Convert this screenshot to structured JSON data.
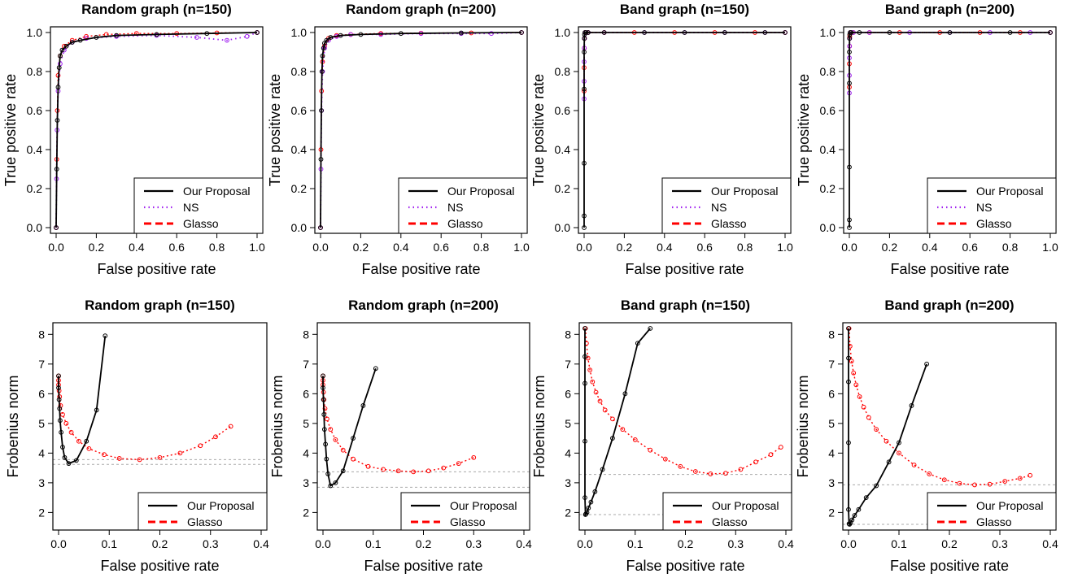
{
  "chart_data": [
    {
      "type": "line",
      "title": "Random graph (n=150)",
      "xlabel": "False positive rate",
      "ylabel": "True positive rate",
      "xlim": [
        0,
        1
      ],
      "ylim": [
        0,
        1
      ],
      "xticks": [
        "0.0",
        "0.2",
        "0.4",
        "0.6",
        "0.8",
        "1.0"
      ],
      "yticks": [
        "0.0",
        "0.2",
        "0.4",
        "0.6",
        "0.8",
        "1.0"
      ],
      "legend": "bottom-right",
      "series": [
        {
          "name": "Our Proposal",
          "color": "#000000",
          "x": [
            0,
            0.003,
            0.006,
            0.01,
            0.015,
            0.02,
            0.03,
            0.05,
            0.08,
            0.12,
            0.2,
            0.3,
            0.5,
            0.75,
            1.0
          ],
          "y": [
            0,
            0.3,
            0.55,
            0.72,
            0.82,
            0.88,
            0.91,
            0.93,
            0.95,
            0.96,
            0.975,
            0.985,
            0.99,
            0.995,
            1.0
          ]
        },
        {
          "name": "NS",
          "color": "#a020f0",
          "x": [
            0,
            0.002,
            0.005,
            0.01,
            0.02,
            0.04,
            0.08,
            0.15,
            0.3,
            0.5,
            0.7,
            0.85,
            0.95,
            1.0
          ],
          "y": [
            0,
            0.25,
            0.5,
            0.7,
            0.84,
            0.91,
            0.95,
            0.97,
            0.98,
            0.985,
            0.975,
            0.96,
            0.98,
            1.0
          ]
        },
        {
          "name": "Glasso",
          "color": "#ff0000",
          "x": [
            0,
            0.003,
            0.006,
            0.01,
            0.02,
            0.04,
            0.08,
            0.15,
            0.25,
            0.4,
            0.6,
            0.8,
            1.0
          ],
          "y": [
            0,
            0.35,
            0.6,
            0.78,
            0.88,
            0.93,
            0.96,
            0.98,
            0.99,
            0.995,
            0.995,
            0.998,
            1.0
          ]
        }
      ]
    },
    {
      "type": "line",
      "title": "Random graph (n=200)",
      "xlabel": "False positive rate",
      "ylabel": "True positive rate",
      "xlim": [
        0,
        1
      ],
      "ylim": [
        0,
        1
      ],
      "xticks": [
        "0.0",
        "0.2",
        "0.4",
        "0.6",
        "0.8",
        "1.0"
      ],
      "yticks": [
        "0.0",
        "0.2",
        "0.4",
        "0.6",
        "0.8",
        "1.0"
      ],
      "legend": "bottom-right",
      "series": [
        {
          "name": "Our Proposal",
          "color": "#000000",
          "x": [
            0,
            0.002,
            0.004,
            0.007,
            0.01,
            0.015,
            0.02,
            0.03,
            0.05,
            0.1,
            0.2,
            0.4,
            0.7,
            1.0
          ],
          "y": [
            0,
            0.35,
            0.6,
            0.8,
            0.88,
            0.92,
            0.945,
            0.96,
            0.975,
            0.985,
            0.99,
            0.995,
            0.998,
            1.0
          ]
        },
        {
          "name": "NS",
          "color": "#a020f0",
          "x": [
            0,
            0.002,
            0.005,
            0.01,
            0.02,
            0.04,
            0.08,
            0.15,
            0.3,
            0.5,
            0.7,
            0.85,
            1.0
          ],
          "y": [
            0,
            0.3,
            0.6,
            0.8,
            0.92,
            0.96,
            0.98,
            0.99,
            0.99,
            0.995,
            0.995,
            0.995,
            1.0
          ]
        },
        {
          "name": "Glasso",
          "color": "#ff0000",
          "x": [
            0,
            0.002,
            0.005,
            0.01,
            0.02,
            0.04,
            0.08,
            0.15,
            0.3,
            0.5,
            0.75,
            1.0
          ],
          "y": [
            0,
            0.4,
            0.7,
            0.85,
            0.93,
            0.97,
            0.985,
            0.99,
            0.995,
            0.997,
            0.998,
            1.0
          ]
        }
      ]
    },
    {
      "type": "line",
      "title": "Band graph (n=150)",
      "xlabel": "False positive rate",
      "ylabel": "True positive rate",
      "xlim": [
        0,
        1
      ],
      "ylim": [
        0,
        1
      ],
      "xticks": [
        "0.0",
        "0.2",
        "0.4",
        "0.6",
        "0.8",
        "1.0"
      ],
      "yticks": [
        "0.0",
        "0.2",
        "0.4",
        "0.6",
        "0.8",
        "1.0"
      ],
      "legend": "bottom-right",
      "series": [
        {
          "name": "Our Proposal",
          "color": "#000000",
          "x": [
            0,
            0,
            0,
            0,
            0,
            0.001,
            0.002,
            0.004,
            0.01,
            0.02,
            0.1,
            0.3,
            0.5,
            0.7,
            0.9,
            1.0
          ],
          "y": [
            0,
            0.06,
            0.33,
            0.71,
            0.9,
            0.97,
            0.99,
            1.0,
            1.0,
            1.0,
            1.0,
            1.0,
            1.0,
            1.0,
            1.0,
            1.0
          ]
        },
        {
          "name": "NS",
          "color": "#a020f0",
          "x": [
            0,
            0,
            0,
            0.001,
            0.002,
            0.005,
            0.02,
            0.1,
            0.3,
            0.5,
            0.7,
            0.9,
            1.0
          ],
          "y": [
            0.66,
            0.75,
            0.85,
            0.92,
            0.97,
            1.0,
            1.0,
            1.0,
            1.0,
            1.0,
            1.0,
            1.0,
            1.0
          ]
        },
        {
          "name": "Glasso",
          "color": "#ff0000",
          "x": [
            0,
            0,
            0.001,
            0.002,
            0.005,
            0.02,
            0.1,
            0.25,
            0.45,
            0.65,
            0.85,
            1.0
          ],
          "y": [
            0.7,
            0.82,
            0.92,
            0.97,
            1.0,
            1.0,
            1.0,
            1.0,
            1.0,
            1.0,
            1.0,
            1.0
          ]
        }
      ]
    },
    {
      "type": "line",
      "title": "Band graph (n=200)",
      "xlabel": "False positive rate",
      "ylabel": "True positive rate",
      "xlim": [
        0,
        1
      ],
      "ylim": [
        0,
        1
      ],
      "xticks": [
        "0.0",
        "0.2",
        "0.4",
        "0.6",
        "0.8",
        "1.0"
      ],
      "yticks": [
        "0.0",
        "0.2",
        "0.4",
        "0.6",
        "0.8",
        "1.0"
      ],
      "legend": "bottom-right",
      "series": [
        {
          "name": "Our Proposal",
          "color": "#000000",
          "x": [
            0,
            0,
            0,
            0,
            0,
            0.001,
            0.002,
            0.004,
            0.01,
            0.05,
            0.2,
            0.5,
            0.8,
            1.0
          ],
          "y": [
            0,
            0.04,
            0.31,
            0.74,
            0.9,
            0.97,
            0.99,
            1.0,
            1.0,
            1.0,
            1.0,
            1.0,
            1.0,
            1.0
          ]
        },
        {
          "name": "NS",
          "color": "#a020f0",
          "x": [
            0,
            0,
            0,
            0.001,
            0.002,
            0.005,
            0.02,
            0.1,
            0.3,
            0.5,
            0.7,
            0.9,
            1.0
          ],
          "y": [
            0.69,
            0.78,
            0.87,
            0.93,
            0.97,
            1.0,
            1.0,
            1.0,
            1.0,
            1.0,
            1.0,
            1.0,
            1.0
          ]
        },
        {
          "name": "Glasso",
          "color": "#ff0000",
          "x": [
            0,
            0,
            0.001,
            0.002,
            0.005,
            0.02,
            0.1,
            0.25,
            0.45,
            0.65,
            0.85,
            1.0
          ],
          "y": [
            0.72,
            0.84,
            0.93,
            0.98,
            1.0,
            1.0,
            1.0,
            1.0,
            1.0,
            1.0,
            1.0,
            1.0
          ]
        }
      ]
    },
    {
      "type": "line",
      "title": "Random graph (n=150)",
      "xlabel": "False positive rate",
      "ylabel": "Frobenius norm",
      "xlim": [
        0,
        0.4
      ],
      "ylim": [
        1.6,
        8.2
      ],
      "xticks": [
        "0.0",
        "0.1",
        "0.2",
        "0.3",
        "0.4"
      ],
      "yticks": [
        "2",
        "3",
        "4",
        "5",
        "6",
        "7",
        "8"
      ],
      "reference_lines": [
        3.62,
        3.78
      ],
      "legend": "bottom-right",
      "series": [
        {
          "name": "Our Proposal",
          "color": "#000000",
          "x": [
            0,
            0,
            0.001,
            0.002,
            0.003,
            0.005,
            0.008,
            0.012,
            0.02,
            0.035,
            0.055,
            0.075,
            0.092
          ],
          "y": [
            6.6,
            6.2,
            5.8,
            5.5,
            5.1,
            4.7,
            4.2,
            3.85,
            3.65,
            3.75,
            4.4,
            5.45,
            7.95
          ]
        },
        {
          "name": "Glasso",
          "color": "#ff0000",
          "x": [
            0,
            0,
            0,
            0.001,
            0.002,
            0.004,
            0.008,
            0.015,
            0.025,
            0.04,
            0.06,
            0.09,
            0.12,
            0.16,
            0.2,
            0.24,
            0.28,
            0.31,
            0.34
          ],
          "y": [
            6.6,
            6.45,
            6.3,
            6.1,
            5.9,
            5.6,
            5.3,
            5.0,
            4.7,
            4.4,
            4.15,
            3.95,
            3.82,
            3.78,
            3.85,
            4.0,
            4.25,
            4.55,
            4.9
          ]
        }
      ]
    },
    {
      "type": "line",
      "title": "Random graph (n=200)",
      "xlabel": "False positive rate",
      "ylabel": "Frobenius norm",
      "xlim": [
        0,
        0.4
      ],
      "ylim": [
        1.6,
        8.2
      ],
      "xticks": [
        "0.0",
        "0.1",
        "0.2",
        "0.3",
        "0.4"
      ],
      "yticks": [
        "2",
        "3",
        "4",
        "5",
        "6",
        "7",
        "8"
      ],
      "reference_lines": [
        2.85,
        3.37
      ],
      "legend": "bottom-right",
      "series": [
        {
          "name": "Our Proposal",
          "color": "#000000",
          "x": [
            0,
            0,
            0.001,
            0.002,
            0.003,
            0.005,
            0.007,
            0.01,
            0.015,
            0.025,
            0.04,
            0.06,
            0.08,
            0.105
          ],
          "y": [
            6.6,
            6.2,
            5.8,
            5.3,
            4.8,
            4.3,
            3.8,
            3.3,
            2.9,
            3.0,
            3.4,
            4.5,
            5.6,
            6.85
          ]
        },
        {
          "name": "Glasso",
          "color": "#ff0000",
          "x": [
            0,
            0,
            0,
            0.001,
            0.002,
            0.004,
            0.008,
            0.015,
            0.025,
            0.04,
            0.06,
            0.09,
            0.12,
            0.15,
            0.18,
            0.21,
            0.24,
            0.27,
            0.3
          ],
          "y": [
            6.6,
            6.45,
            6.3,
            6.05,
            5.8,
            5.5,
            5.15,
            4.8,
            4.45,
            4.1,
            3.8,
            3.55,
            3.45,
            3.4,
            3.37,
            3.4,
            3.5,
            3.65,
            3.85
          ]
        }
      ]
    },
    {
      "type": "line",
      "title": "Band graph (n=150)",
      "xlabel": "False positive rate",
      "ylabel": "Frobenius norm",
      "xlim": [
        0,
        0.4
      ],
      "ylim": [
        1.6,
        8.2
      ],
      "xticks": [
        "0.0",
        "0.1",
        "0.2",
        "0.3",
        "0.4"
      ],
      "yticks": [
        "2",
        "3",
        "4",
        "5",
        "6",
        "7",
        "8"
      ],
      "reference_lines": [
        1.93,
        3.28
      ],
      "legend": "bottom-right",
      "series": [
        {
          "name": "Our Proposal",
          "color": "#000000",
          "x": [
            0,
            0,
            0,
            0,
            0,
            0.001,
            0.002,
            0.004,
            0.007,
            0.012,
            0.02,
            0.035,
            0.055,
            0.08,
            0.105,
            0.13
          ],
          "y": [
            8.2,
            7.25,
            6.35,
            4.4,
            2.5,
            1.93,
            1.95,
            2.0,
            2.15,
            2.35,
            2.7,
            3.45,
            4.5,
            6.0,
            7.7,
            8.2
          ]
        },
        {
          "name": "Glasso",
          "color": "#ff0000",
          "x": [
            0.001,
            0.003,
            0.006,
            0.01,
            0.015,
            0.022,
            0.03,
            0.04,
            0.055,
            0.075,
            0.1,
            0.13,
            0.16,
            0.19,
            0.22,
            0.25,
            0.28,
            0.31,
            0.34,
            0.37,
            0.39
          ],
          "y": [
            8.2,
            7.7,
            7.2,
            6.8,
            6.4,
            6.05,
            5.75,
            5.45,
            5.15,
            4.8,
            4.45,
            4.1,
            3.8,
            3.55,
            3.38,
            3.3,
            3.32,
            3.45,
            3.7,
            3.95,
            4.2
          ]
        }
      ]
    },
    {
      "type": "line",
      "title": "Band graph (n=200)",
      "xlabel": "False positive rate",
      "ylabel": "Frobenius norm",
      "xlim": [
        0,
        0.4
      ],
      "ylim": [
        1.6,
        8.2
      ],
      "xticks": [
        "0.0",
        "0.1",
        "0.2",
        "0.3",
        "0.4"
      ],
      "yticks": [
        "2",
        "3",
        "4",
        "5",
        "6",
        "7",
        "8"
      ],
      "reference_lines": [
        1.6,
        2.93
      ],
      "legend": "bottom-right",
      "series": [
        {
          "name": "Our Proposal",
          "color": "#000000",
          "x": [
            0,
            0,
            0,
            0,
            0,
            0.001,
            0.002,
            0.004,
            0.007,
            0.012,
            0.02,
            0.035,
            0.055,
            0.08,
            0.1,
            0.125,
            0.155
          ],
          "y": [
            8.2,
            7.2,
            6.4,
            4.35,
            2.1,
            1.62,
            1.6,
            1.65,
            1.75,
            1.9,
            2.1,
            2.5,
            2.9,
            3.7,
            4.35,
            5.6,
            7.0
          ]
        },
        {
          "name": "Glasso",
          "color": "#ff0000",
          "x": [
            0.001,
            0.003,
            0.006,
            0.01,
            0.015,
            0.022,
            0.03,
            0.04,
            0.055,
            0.075,
            0.1,
            0.13,
            0.16,
            0.19,
            0.22,
            0.25,
            0.28,
            0.31,
            0.34,
            0.36
          ],
          "y": [
            8.2,
            7.6,
            7.1,
            6.7,
            6.3,
            5.9,
            5.55,
            5.2,
            4.8,
            4.4,
            4.0,
            3.6,
            3.3,
            3.1,
            2.98,
            2.93,
            2.95,
            3.05,
            3.15,
            3.25
          ]
        }
      ]
    }
  ]
}
